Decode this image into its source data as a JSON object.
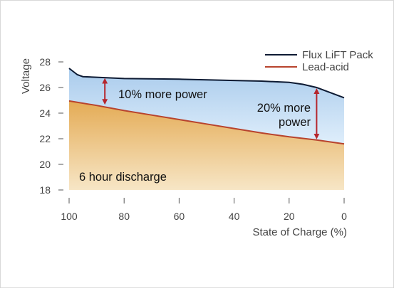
{
  "chart_data": {
    "type": "area",
    "title": "",
    "xlabel": "State of Charge (%)",
    "ylabel": "Voltage",
    "xlim": [
      100,
      0
    ],
    "ylim": [
      18,
      28
    ],
    "xticks": [
      100,
      80,
      60,
      40,
      20,
      0
    ],
    "yticks": [
      18,
      20,
      22,
      24,
      26,
      28
    ],
    "grid": false,
    "legend": "top-right",
    "series": [
      {
        "name": "Flux LiFT Pack",
        "color": "#0d1a33",
        "fill_top": "#a9cbec",
        "fill_bottom": "#dfeefb",
        "x": [
          100,
          97,
          95,
          90,
          80,
          60,
          40,
          30,
          20,
          15,
          10,
          5,
          0
        ],
        "y": [
          27.5,
          27.0,
          26.85,
          26.8,
          26.7,
          26.65,
          26.55,
          26.5,
          26.4,
          26.25,
          26.0,
          25.6,
          25.2
        ]
      },
      {
        "name": "Lead-acid",
        "color": "#b8432d",
        "fill_top": "#e4ab55",
        "fill_bottom": "#f7e6c6",
        "x": [
          100,
          90,
          80,
          70,
          60,
          50,
          40,
          30,
          20,
          10,
          0
        ],
        "y": [
          24.95,
          24.6,
          24.2,
          23.85,
          23.5,
          23.15,
          22.8,
          22.45,
          22.15,
          21.9,
          21.6
        ]
      }
    ],
    "annotations": [
      {
        "text_lines": [
          "10% more power"
        ],
        "x": 87,
        "from": 24.6,
        "to": 26.8
      },
      {
        "text_lines": [
          "20% more",
          "power"
        ],
        "x": 10,
        "from": 21.9,
        "to": 26.0
      },
      {
        "text_lines": [
          "6 hour discharge"
        ]
      }
    ],
    "annotation_arrow_color": "#b5262d"
  }
}
